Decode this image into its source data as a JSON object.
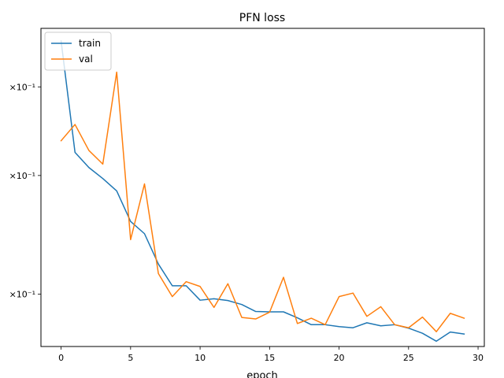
{
  "chart_data": {
    "type": "line",
    "title": "PFN loss",
    "xlabel": "epoch",
    "ylabel": "",
    "yscale": "log",
    "grid": false,
    "legend": "top-left",
    "xlim": [
      -1.45,
      30.45
    ],
    "ylim": [
      0.0862,
      0.2125
    ],
    "x": [
      0,
      1,
      2,
      3,
      4,
      5,
      6,
      7,
      8,
      9,
      10,
      11,
      12,
      13,
      14,
      15,
      16,
      17,
      18,
      19,
      20,
      21,
      22,
      23,
      24,
      25,
      26,
      27,
      28,
      29
    ],
    "xticks": [
      0,
      5,
      10,
      15,
      20,
      25,
      30
    ],
    "xtick_labels": [
      "0",
      "5",
      "10",
      "15",
      "20",
      "25",
      "30"
    ],
    "yticks": [
      0.18,
      0.14,
      0.1
    ],
    "ytick_labels": [
      "×10⁻¹",
      "×10⁻¹",
      "×10⁻¹"
    ],
    "series": [
      {
        "name": "train",
        "color": "#1f77b4",
        "values": [
          0.205,
          0.1495,
          0.1432,
          0.1388,
          0.134,
          0.1229,
          0.1187,
          0.1089,
          0.1024,
          0.1024,
          0.0983,
          0.0987,
          0.0982,
          0.0971,
          0.0952,
          0.0951,
          0.0951,
          0.0935,
          0.0917,
          0.0917,
          0.0912,
          0.0909,
          0.0922,
          0.0914,
          0.0917,
          0.0908,
          0.0895,
          0.0875,
          0.0898,
          0.0893
        ]
      },
      {
        "name": "val",
        "color": "#ff7f0e",
        "values": [
          0.1545,
          0.1618,
          0.1503,
          0.1446,
          0.1877,
          0.1167,
          0.1367,
          0.106,
          0.0993,
          0.1036,
          0.1022,
          0.0963,
          0.103,
          0.0936,
          0.0932,
          0.095,
          0.1049,
          0.092,
          0.0934,
          0.0917,
          0.0993,
          0.1003,
          0.0939,
          0.0965,
          0.0917,
          0.0909,
          0.0937,
          0.0899,
          0.0947,
          0.0934
        ]
      }
    ]
  }
}
